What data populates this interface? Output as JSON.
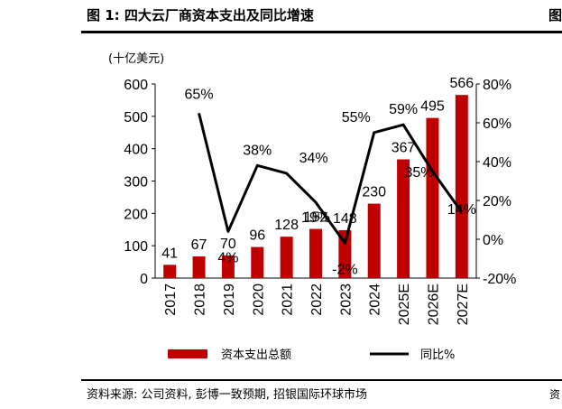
{
  "header": {
    "title": "图 1: 四大云厂商资本支出及同比增速",
    "edge_fragment": "图"
  },
  "footer": {
    "source": "资料来源: 公司资料, 彭博一致预期, 招银国际环球市场",
    "edge_fragment": "资"
  },
  "chart_data": {
    "type": "bar",
    "unit_label": "(十亿美元)",
    "categories": [
      "2017",
      "2018",
      "2019",
      "2020",
      "2021",
      "2022",
      "2023",
      "2024",
      "2025E",
      "2026E",
      "2027E"
    ],
    "series": [
      {
        "name": "资本支出总额",
        "type": "bar",
        "axis": "left",
        "color": "#c00000",
        "values": [
          41,
          67,
          70,
          96,
          128,
          152,
          148,
          230,
          367,
          495,
          566
        ],
        "labels": [
          "41",
          "67",
          "70",
          "96",
          "128",
          "152",
          "148",
          "230",
          "367",
          "495",
          "566"
        ]
      },
      {
        "name": "同比%",
        "type": "line",
        "axis": "right",
        "color": "#000000",
        "values": [
          null,
          65,
          4,
          38,
          34,
          19,
          -2,
          55,
          59,
          35,
          14
        ],
        "labels": [
          "",
          "65%",
          "4%",
          "38%",
          "34%",
          "19%",
          "-2%",
          "55%",
          "59%",
          "35%",
          "14%"
        ]
      }
    ],
    "y_left": {
      "min": 0,
      "max": 600,
      "ticks": [
        0,
        100,
        200,
        300,
        400,
        500,
        600
      ]
    },
    "y_right": {
      "min": -20,
      "max": 80,
      "ticks": [
        -20,
        0,
        20,
        40,
        60,
        80
      ],
      "tick_labels": [
        "-20%",
        "0%",
        "20%",
        "40%",
        "60%",
        "80%"
      ]
    },
    "grid": false,
    "legend_position": "bottom"
  }
}
